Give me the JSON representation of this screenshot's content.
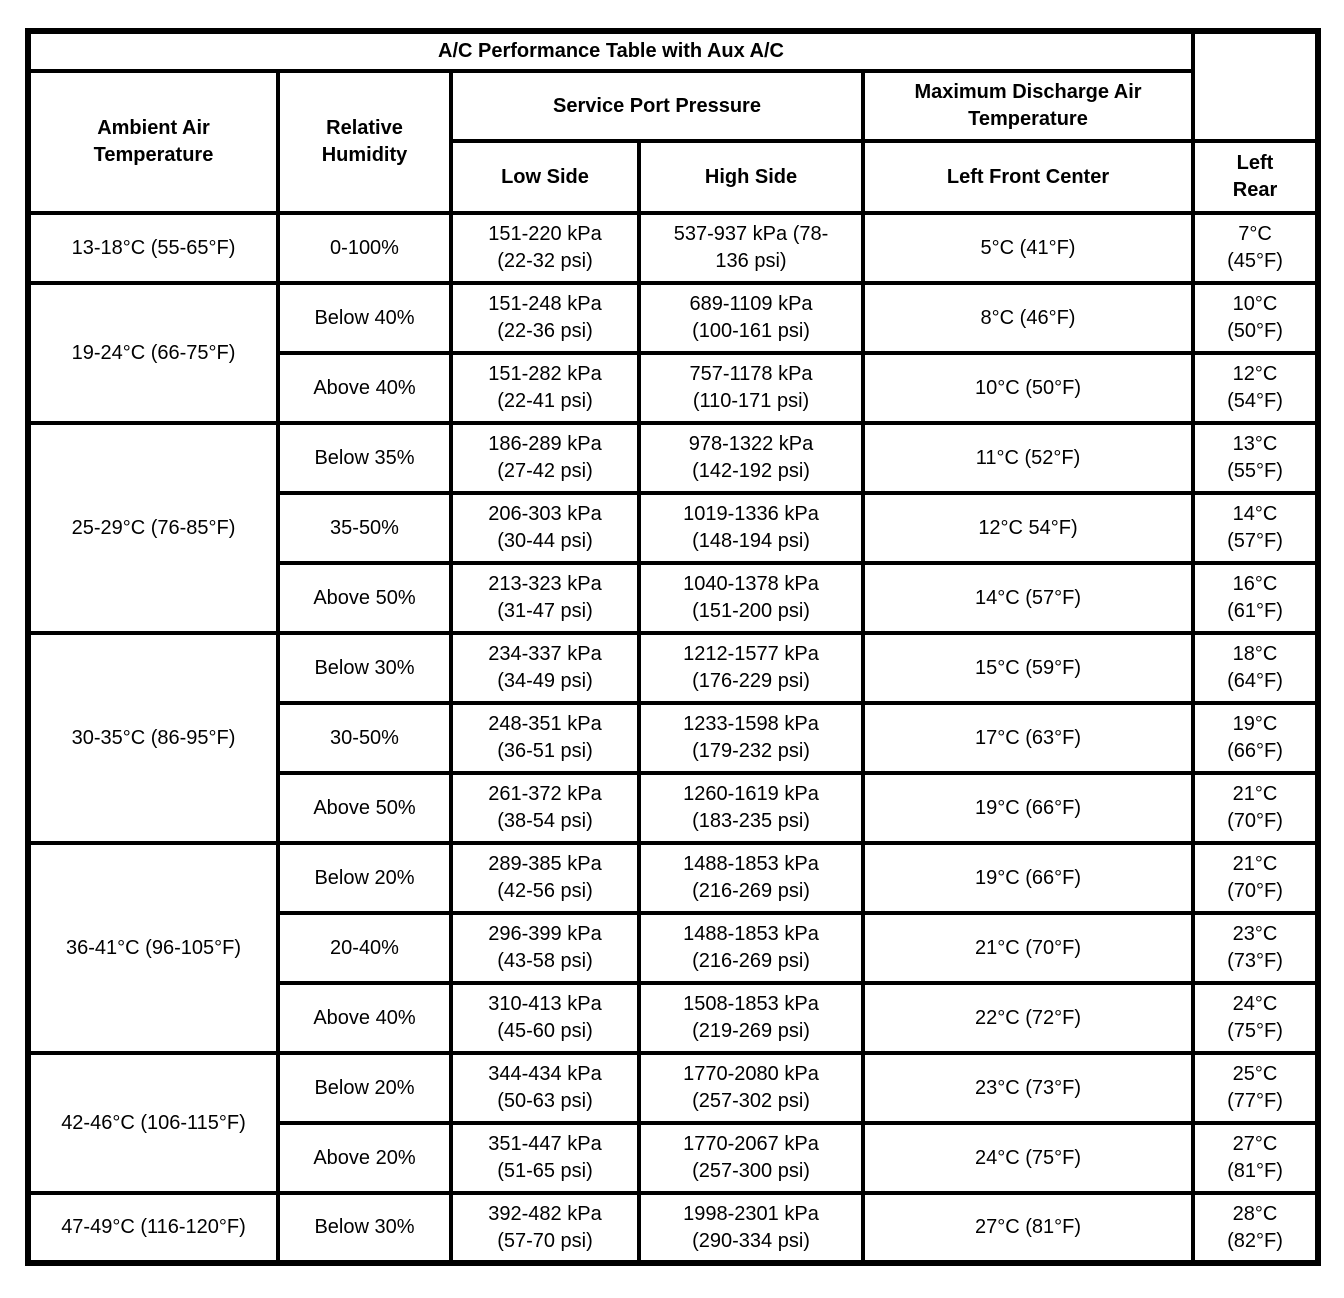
{
  "title": "A/C Performance Table with Aux A/C",
  "header": {
    "ambient": "Ambient Air\nTemperature",
    "humidity": "Relative\nHumidity",
    "service_port_pressure": "Service Port Pressure",
    "low_side": "Low Side",
    "high_side": "High Side",
    "max_discharge": "Maximum Discharge Air\nTemperature",
    "left_front_center": "Left Front Center",
    "left_rear": "Left\nRear"
  },
  "groups": [
    {
      "ambient": "13-18°C (55-65°F)",
      "rows": [
        {
          "humidity": "0-100%",
          "low": "151-220 kPa\n(22-32 psi)",
          "high": "537-937 kPa (78-\n136 psi)",
          "lfc": "5°C (41°F)",
          "lr": "7°C\n(45°F)"
        }
      ]
    },
    {
      "ambient": "19-24°C (66-75°F)",
      "rows": [
        {
          "humidity": "Below 40%",
          "low": "151-248 kPa\n(22-36 psi)",
          "high": "689-1109 kPa\n(100-161 psi)",
          "lfc": "8°C (46°F)",
          "lr": "10°C\n(50°F)"
        },
        {
          "humidity": "Above 40%",
          "low": "151-282 kPa\n(22-41 psi)",
          "high": "757-1178 kPa\n(110-171 psi)",
          "lfc": "10°C (50°F)",
          "lr": "12°C\n(54°F)"
        }
      ]
    },
    {
      "ambient": "25-29°C (76-85°F)",
      "rows": [
        {
          "humidity": "Below 35%",
          "low": "186-289 kPa\n(27-42 psi)",
          "high": "978-1322 kPa\n(142-192 psi)",
          "lfc": "11°C (52°F)",
          "lr": "13°C\n(55°F)"
        },
        {
          "humidity": "35-50%",
          "low": "206-303 kPa\n(30-44 psi)",
          "high": "1019-1336 kPa\n(148-194 psi)",
          "lfc": "12°C 54°F)",
          "lr": "14°C\n(57°F)"
        },
        {
          "humidity": "Above 50%",
          "low": "213-323 kPa\n(31-47 psi)",
          "high": "1040-1378 kPa\n(151-200 psi)",
          "lfc": "14°C (57°F)",
          "lr": "16°C\n(61°F)"
        }
      ]
    },
    {
      "ambient": "30-35°C (86-95°F)",
      "rows": [
        {
          "humidity": "Below 30%",
          "low": "234-337 kPa\n(34-49 psi)",
          "high": "1212-1577 kPa\n(176-229 psi)",
          "lfc": "15°C (59°F)",
          "lr": "18°C\n(64°F)"
        },
        {
          "humidity": "30-50%",
          "low": "248-351 kPa\n(36-51 psi)",
          "high": "1233-1598 kPa\n(179-232 psi)",
          "lfc": "17°C (63°F)",
          "lr": "19°C\n(66°F)"
        },
        {
          "humidity": "Above 50%",
          "low": "261-372 kPa\n(38-54 psi)",
          "high": "1260-1619 kPa\n(183-235 psi)",
          "lfc": "19°C (66°F)",
          "lr": "21°C\n(70°F)"
        }
      ]
    },
    {
      "ambient": "36-41°C (96-105°F)",
      "rows": [
        {
          "humidity": "Below 20%",
          "low": "289-385 kPa\n(42-56 psi)",
          "high": "1488-1853 kPa\n(216-269 psi)",
          "lfc": "19°C (66°F)",
          "lr": "21°C\n(70°F)"
        },
        {
          "humidity": "20-40%",
          "low": "296-399 kPa\n(43-58 psi)",
          "high": "1488-1853 kPa\n(216-269 psi)",
          "lfc": "21°C (70°F)",
          "lr": "23°C\n(73°F)"
        },
        {
          "humidity": "Above 40%",
          "low": "310-413 kPa\n(45-60 psi)",
          "high": "1508-1853 kPa\n(219-269 psi)",
          "lfc": "22°C (72°F)",
          "lr": "24°C\n(75°F)"
        }
      ]
    },
    {
      "ambient": "42-46°C (106-115°F)",
      "rows": [
        {
          "humidity": "Below 20%",
          "low": "344-434 kPa\n(50-63 psi)",
          "high": "1770-2080 kPa\n(257-302 psi)",
          "lfc": "23°C (73°F)",
          "lr": "25°C\n(77°F)"
        },
        {
          "humidity": "Above 20%",
          "low": "351-447 kPa\n(51-65 psi)",
          "high": "1770-2067 kPa\n(257-300 psi)",
          "lfc": "24°C (75°F)",
          "lr": "27°C\n(81°F)"
        }
      ]
    },
    {
      "ambient": "47-49°C (116-120°F)",
      "rows": [
        {
          "humidity": "Below 30%",
          "low": "392-482 kPa\n(57-70 psi)",
          "high": "1998-2301 kPa\n(290-334 psi)",
          "lfc": "27°C (81°F)",
          "lr": "28°C\n(82°F)"
        }
      ]
    }
  ]
}
